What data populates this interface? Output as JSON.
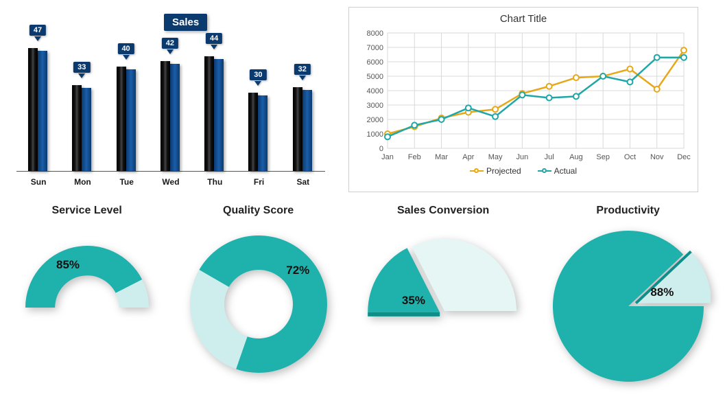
{
  "sales_bar": {
    "type": "bar",
    "title": "Sales",
    "title_bg": "#0b3a6e",
    "title_color": "#ffffff",
    "categories": [
      "Sun",
      "Mon",
      "Tue",
      "Wed",
      "Thu",
      "Fri",
      "Sat"
    ],
    "values": [
      47,
      33,
      40,
      42,
      44,
      30,
      32
    ],
    "max": 50,
    "bar_colors": {
      "back": "#000000",
      "front": "#0b3a6e"
    },
    "badge_bg": "#0b3a6e",
    "badge_color": "#ffffff",
    "axis_color": "#555555",
    "label_fontsize": 12
  },
  "line_chart": {
    "type": "line",
    "title": "Chart Title",
    "categories": [
      "Jan",
      "Feb",
      "Mar",
      "Apr",
      "May",
      "Jun",
      "Jul",
      "Aug",
      "Sep",
      "Oct",
      "Nov",
      "Dec"
    ],
    "series": [
      {
        "name": "Projected",
        "color": "#e6a817",
        "marker": "circle",
        "values": [
          1000,
          1500,
          2100,
          2500,
          2700,
          3800,
          4300,
          4900,
          5000,
          5500,
          4100,
          6800
        ]
      },
      {
        "name": "Actual",
        "color": "#1fa7a7",
        "marker": "circle",
        "values": [
          800,
          1600,
          2000,
          2800,
          2200,
          3700,
          3500,
          3600,
          5000,
          4600,
          6300,
          6300
        ]
      }
    ],
    "ylim": [
      0,
      8000
    ],
    "ytick_step": 1000,
    "grid_color": "#d9d9d9",
    "axis_label_color": "#555555",
    "background_color": "#ffffff",
    "line_width": 2.5,
    "marker_size": 4
  },
  "gauges": {
    "service_level": {
      "title": "Service Level",
      "type": "half-donut",
      "value": 85,
      "label": "85%",
      "fill_color": "#1fb1ac",
      "empty_color": "#cdeeec",
      "inner_ratio": 0.52
    },
    "quality_score": {
      "title": "Quality Score",
      "type": "donut",
      "value": 72,
      "label": "72%",
      "fill_color": "#1fb1ac",
      "empty_color": "#cdeeec",
      "inner_ratio": 0.5,
      "start_angle": -60
    },
    "sales_conversion": {
      "title": "Sales Conversion",
      "type": "half-pie",
      "value": 35,
      "label": "35%",
      "fill_color": "#1fb1ac",
      "fill_color_dark": "#0e8e89",
      "empty_color": "#e6f6f5"
    },
    "productivity": {
      "title": "Productivity",
      "type": "pie",
      "value": 88,
      "label": "88%",
      "fill_color": "#1fb1ac",
      "fill_color_dark": "#0e8e89",
      "empty_color": "#cdeeec",
      "start_angle": 90
    }
  }
}
